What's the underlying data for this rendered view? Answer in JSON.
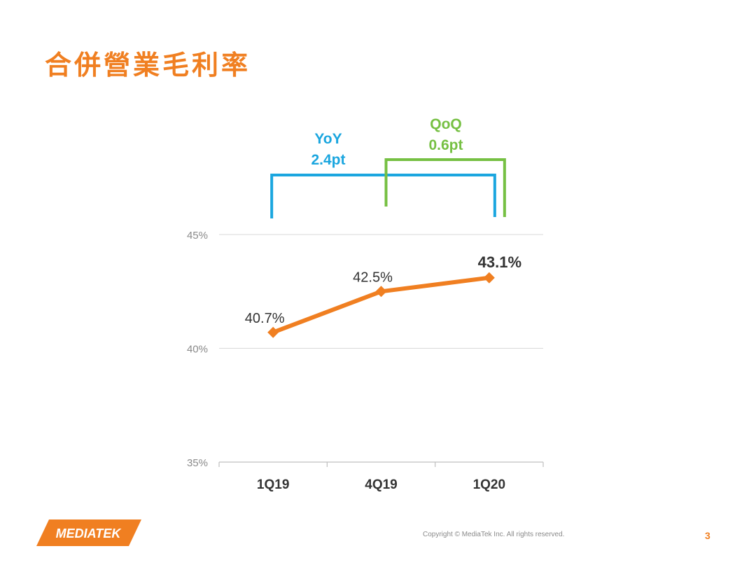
{
  "slide": {
    "title": "合併營業毛利率",
    "copyright": "Copyright © MediaTek Inc. All rights reserved.",
    "page_number": "3",
    "logo_text": "MEDIATEK"
  },
  "colors": {
    "accent": "#f07f21",
    "line": "#f07f21",
    "yoy": "#1ba6df",
    "qoq": "#76c043",
    "grid": "#d9d9d9",
    "tick_text": "#8a8a8a",
    "label_text": "#333333"
  },
  "chart_data": {
    "type": "line",
    "title": "",
    "xlabel": "",
    "ylabel": "",
    "categories": [
      "1Q19",
      "4Q19",
      "1Q20"
    ],
    "series": [
      {
        "values": [
          40.7,
          42.5,
          43.1
        ]
      }
    ],
    "data_labels": [
      "40.7%",
      "42.5%",
      "43.1%"
    ],
    "y_ticks": [
      35,
      40,
      45
    ],
    "y_tick_labels": [
      "35%",
      "40%",
      "45%"
    ],
    "ylim": [
      35,
      45
    ],
    "grid": true,
    "marker": "diamond",
    "annotations": {
      "yoy": {
        "label": "YoY",
        "value": "2.4pt",
        "from": "1Q19",
        "to": "1Q20"
      },
      "qoq": {
        "label": "QoQ",
        "value": "0.6pt",
        "from": "4Q19",
        "to": "1Q20"
      }
    }
  }
}
